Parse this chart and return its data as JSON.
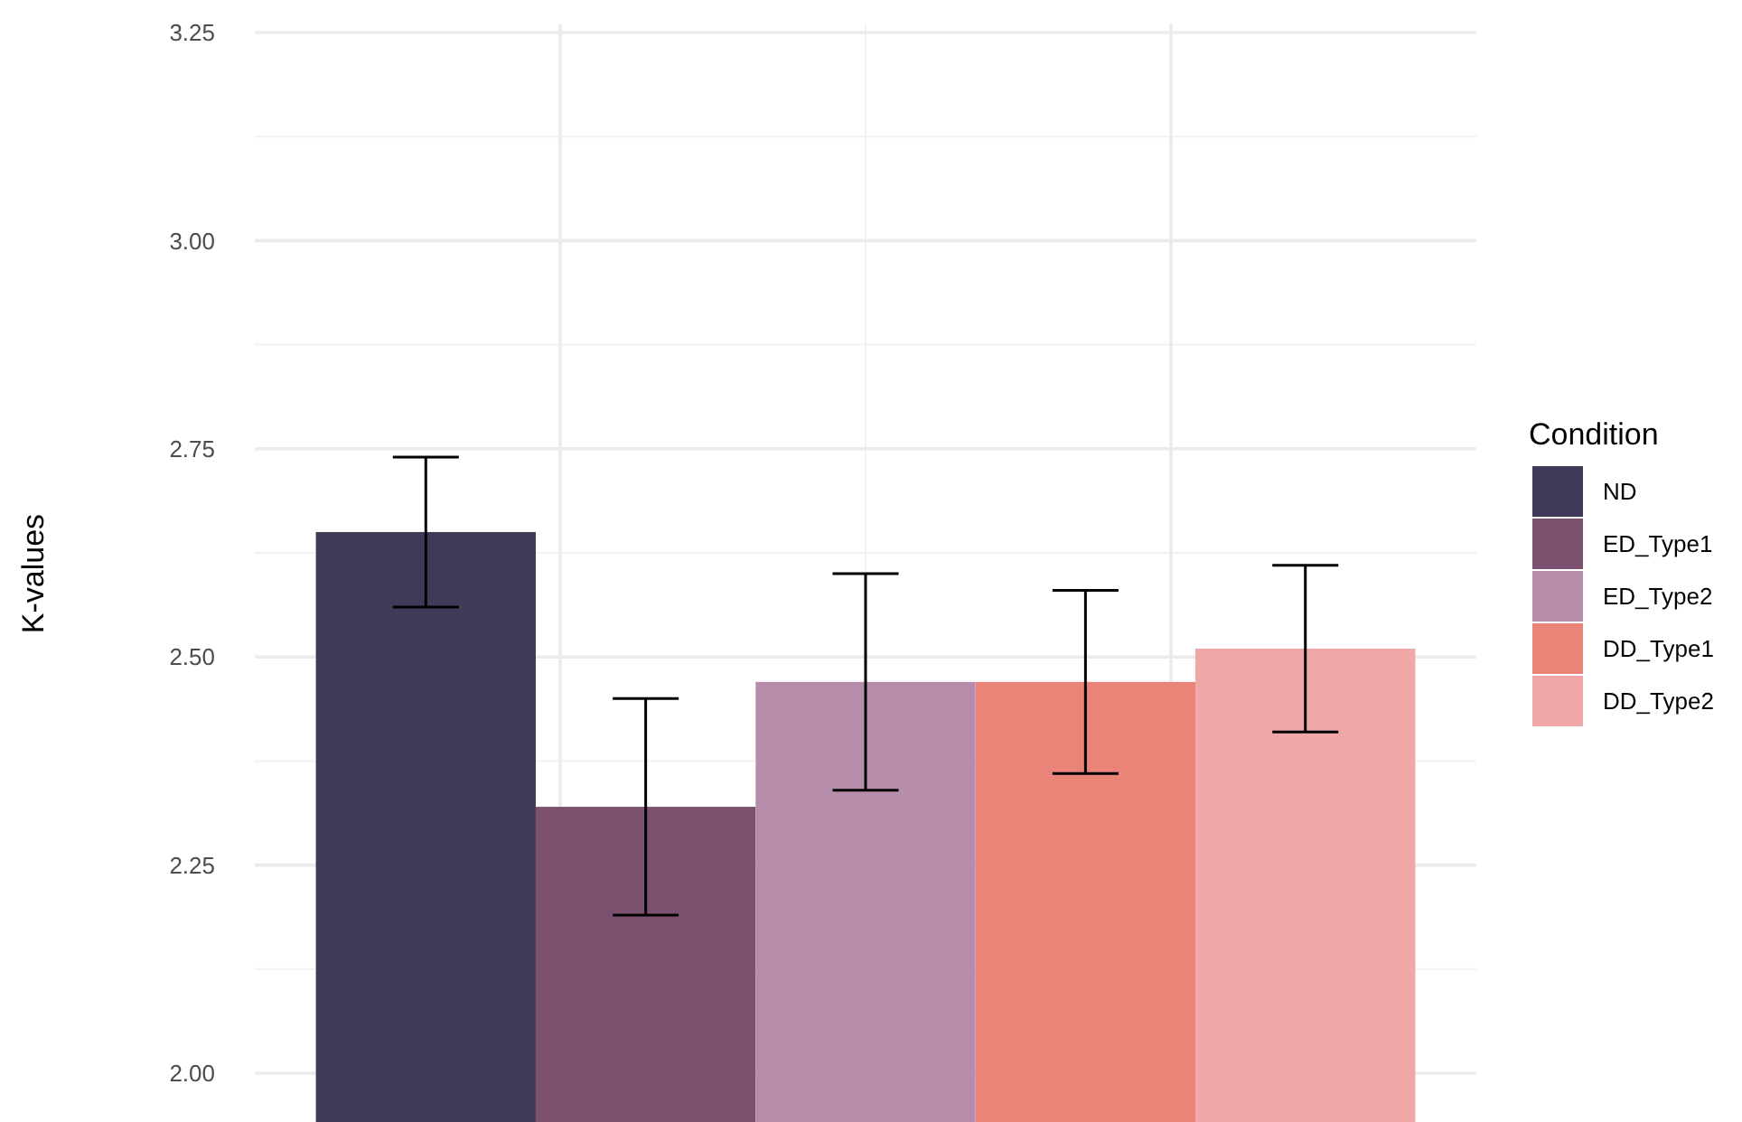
{
  "chart_data": {
    "type": "bar",
    "ylabel": "K-values",
    "legend_title": "Condition",
    "categories": [
      null
    ],
    "ylim": [
      1.94,
      3.26
    ],
    "yticks": [
      {
        "value": 2,
        "label": "2.00"
      },
      {
        "value": 2.25,
        "label": "2.25"
      },
      {
        "value": 2.5,
        "label": "2.50"
      },
      {
        "value": 2.75,
        "label": "2.75"
      },
      {
        "value": 3,
        "label": "3.00"
      },
      {
        "value": 3.25,
        "label": "3.25"
      }
    ],
    "grid": true,
    "legend": "right",
    "series": [
      {
        "name": "ND",
        "color": "#3f3a57",
        "values": [
          2.65
        ],
        "errors": [
          [
            2.56,
            2.74
          ]
        ]
      },
      {
        "name": "ED_Type1",
        "color": "#7b516f",
        "values": [
          2.32
        ],
        "errors": [
          [
            2.19,
            2.45
          ]
        ]
      },
      {
        "name": "ED_Type2",
        "color": "#b68daa",
        "values": [
          2.47
        ],
        "errors": [
          [
            2.34,
            2.6
          ]
        ]
      },
      {
        "name": "DD_Type1",
        "color": "#eb8478",
        "values": [
          2.47
        ],
        "errors": [
          [
            2.36,
            2.58
          ]
        ]
      },
      {
        "name": "DD_Type2",
        "color": "#efa7a7",
        "values": [
          2.51
        ],
        "errors": [
          [
            2.41,
            2.61
          ]
        ]
      }
    ]
  }
}
